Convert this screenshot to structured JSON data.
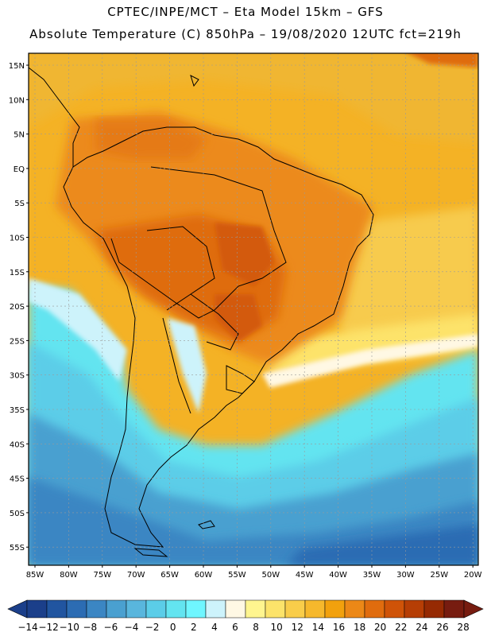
{
  "header": {
    "line1": "CPTEC/INPE/MCT –  Eta Model 15km – GFS",
    "line2": "Absolute Temperature (C) 850hPa – 19/08/2020 12UTC fct=219h"
  },
  "map": {
    "lat_labels": [
      "15N",
      "10N",
      "5N",
      "EQ",
      "5S",
      "10S",
      "15S",
      "20S",
      "25S",
      "30S",
      "35S",
      "40S",
      "45S",
      "50S",
      "55S"
    ],
    "lon_labels": [
      "85W",
      "80W",
      "75W",
      "70W",
      "65W",
      "60W",
      "55W",
      "50W",
      "45W",
      "40W",
      "35W",
      "30W",
      "25W",
      "20W"
    ]
  },
  "colorbar": {
    "labels": [
      "-14",
      "-12",
      "-10",
      "-8",
      "-6",
      "-4",
      "-2",
      "0",
      "2",
      "4",
      "6",
      "8",
      "10",
      "12",
      "14",
      "16",
      "18",
      "20",
      "22",
      "24",
      "26",
      "28"
    ],
    "colors": [
      "#1b3f8a",
      "#2155a0",
      "#2c6cb3",
      "#3b86c3",
      "#4aa0d0",
      "#59b6dd",
      "#5bcde8",
      "#63e4f0",
      "#6ff6ff",
      "#cdf3fb",
      "#fff8e4",
      "#fff58f",
      "#fce36a",
      "#f9cd4a",
      "#f6b82c",
      "#f2a10d",
      "#ec8817",
      "#e06c0e",
      "#cf5308",
      "#b63e05",
      "#962a03",
      "#771c10"
    ]
  },
  "icons": {
    "left_arrow": "colorbar-left-arrow-icon",
    "right_arrow": "colorbar-right-arrow-icon"
  }
}
